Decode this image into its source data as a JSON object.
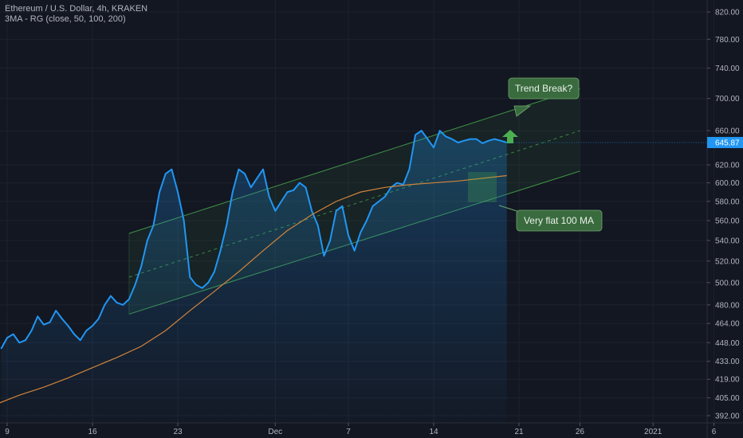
{
  "header": {
    "symbol_line": "Ethereum / U.S. Dollar, 4h, KRAKEN",
    "indicator_line": "3MA - RG (close, 50, 100, 200)"
  },
  "colors": {
    "background": "#131722",
    "price_line": "#2196f3",
    "ma_line": "#d1843a",
    "channel": "#4caf50",
    "annotation_bg": "#3a6b3f",
    "last_price_bg": "#2196f3"
  },
  "annotations": {
    "trend_break": "Trend Break?",
    "flat_ma": "Very flat 100 MA"
  },
  "chart_data": {
    "type": "line",
    "title": "",
    "y_axis": {
      "ticks": [
        "820.00",
        "780.00",
        "740.00",
        "700.00",
        "660.00",
        "620.00",
        "600.00",
        "580.00",
        "560.00",
        "540.00",
        "520.00",
        "500.00",
        "480.00",
        "464.00",
        "448.00",
        "433.00",
        "419.00",
        "405.00",
        "392.00"
      ],
      "tick_values": [
        820,
        780,
        740,
        700,
        660,
        620,
        600,
        580,
        560,
        540,
        520,
        500,
        480,
        464,
        448,
        433,
        419,
        405,
        392
      ],
      "scale": "log"
    },
    "x_axis": {
      "ticks": [
        "9",
        "16",
        "23",
        "Dec",
        "7",
        "14",
        "21",
        "26",
        "2021",
        "6"
      ],
      "tick_days": [
        9,
        16,
        23,
        31,
        37,
        44,
        51,
        56,
        62,
        67
      ]
    },
    "last_price": 645.87,
    "last_price_label": "645.87",
    "series": [
      {
        "name": "ETH/USD",
        "x": [
          8.5,
          9.0,
          9.5,
          10.0,
          10.5,
          11.0,
          11.5,
          12.0,
          12.5,
          13.0,
          13.5,
          14.0,
          14.5,
          15.0,
          15.5,
          16.0,
          16.5,
          17.0,
          17.5,
          18.0,
          18.5,
          19.0,
          19.5,
          20.0,
          20.5,
          21.0,
          21.5,
          22.0,
          22.5,
          23.0,
          23.5,
          24.0,
          24.5,
          25.0,
          25.5,
          26.0,
          26.5,
          27.0,
          27.5,
          28.0,
          28.5,
          29.0,
          29.5,
          30.0,
          30.5,
          31.0,
          31.5,
          32.0,
          32.5,
          33.0,
          33.5,
          34.0,
          34.5,
          35.0,
          35.5,
          36.0,
          36.5,
          37.0,
          37.5,
          38.0,
          38.5,
          39.0,
          39.5,
          40.0,
          40.5,
          41.0,
          41.5,
          42.0,
          42.5,
          43.0,
          43.5,
          44.0,
          44.5,
          45.0,
          45.5,
          46.0,
          46.5,
          47.0,
          47.5,
          48.0,
          48.5,
          49.0,
          49.5,
          50.0
        ],
        "values": [
          443,
          452,
          455,
          448,
          450,
          458,
          470,
          463,
          465,
          475,
          468,
          462,
          455,
          450,
          458,
          462,
          468,
          480,
          488,
          482,
          480,
          485,
          498,
          515,
          540,
          555,
          590,
          610,
          615,
          590,
          560,
          505,
          498,
          495,
          500,
          510,
          530,
          555,
          590,
          615,
          610,
          595,
          605,
          615,
          585,
          570,
          580,
          590,
          592,
          600,
          595,
          570,
          555,
          525,
          540,
          570,
          575,
          545,
          530,
          548,
          560,
          575,
          580,
          585,
          595,
          600,
          598,
          615,
          655,
          660,
          650,
          640,
          660,
          653,
          650,
          645.87,
          648,
          650,
          650,
          645,
          648,
          650,
          648,
          645.87
        ]
      },
      {
        "name": "100 MA",
        "x": [
          8,
          10,
          12,
          14,
          16,
          18,
          20,
          22,
          24,
          26,
          28,
          30,
          32,
          34,
          36,
          38,
          40,
          42,
          44,
          46,
          48,
          50
        ],
        "values": [
          400,
          407,
          413,
          420,
          428,
          436,
          445,
          458,
          475,
          492,
          510,
          530,
          550,
          566,
          580,
          590,
          595,
          598,
          600,
          602,
          605,
          608
        ]
      }
    ],
    "channel": {
      "upper": {
        "x": [
          19.0,
          56.0
        ],
        "values": [
          547,
          713
        ]
      },
      "middle": {
        "x": [
          19.0,
          56.0
        ],
        "values": [
          505,
          660
        ]
      },
      "lower": {
        "x": [
          19.0,
          56.0
        ],
        "values": [
          472,
          613
        ]
      }
    }
  }
}
